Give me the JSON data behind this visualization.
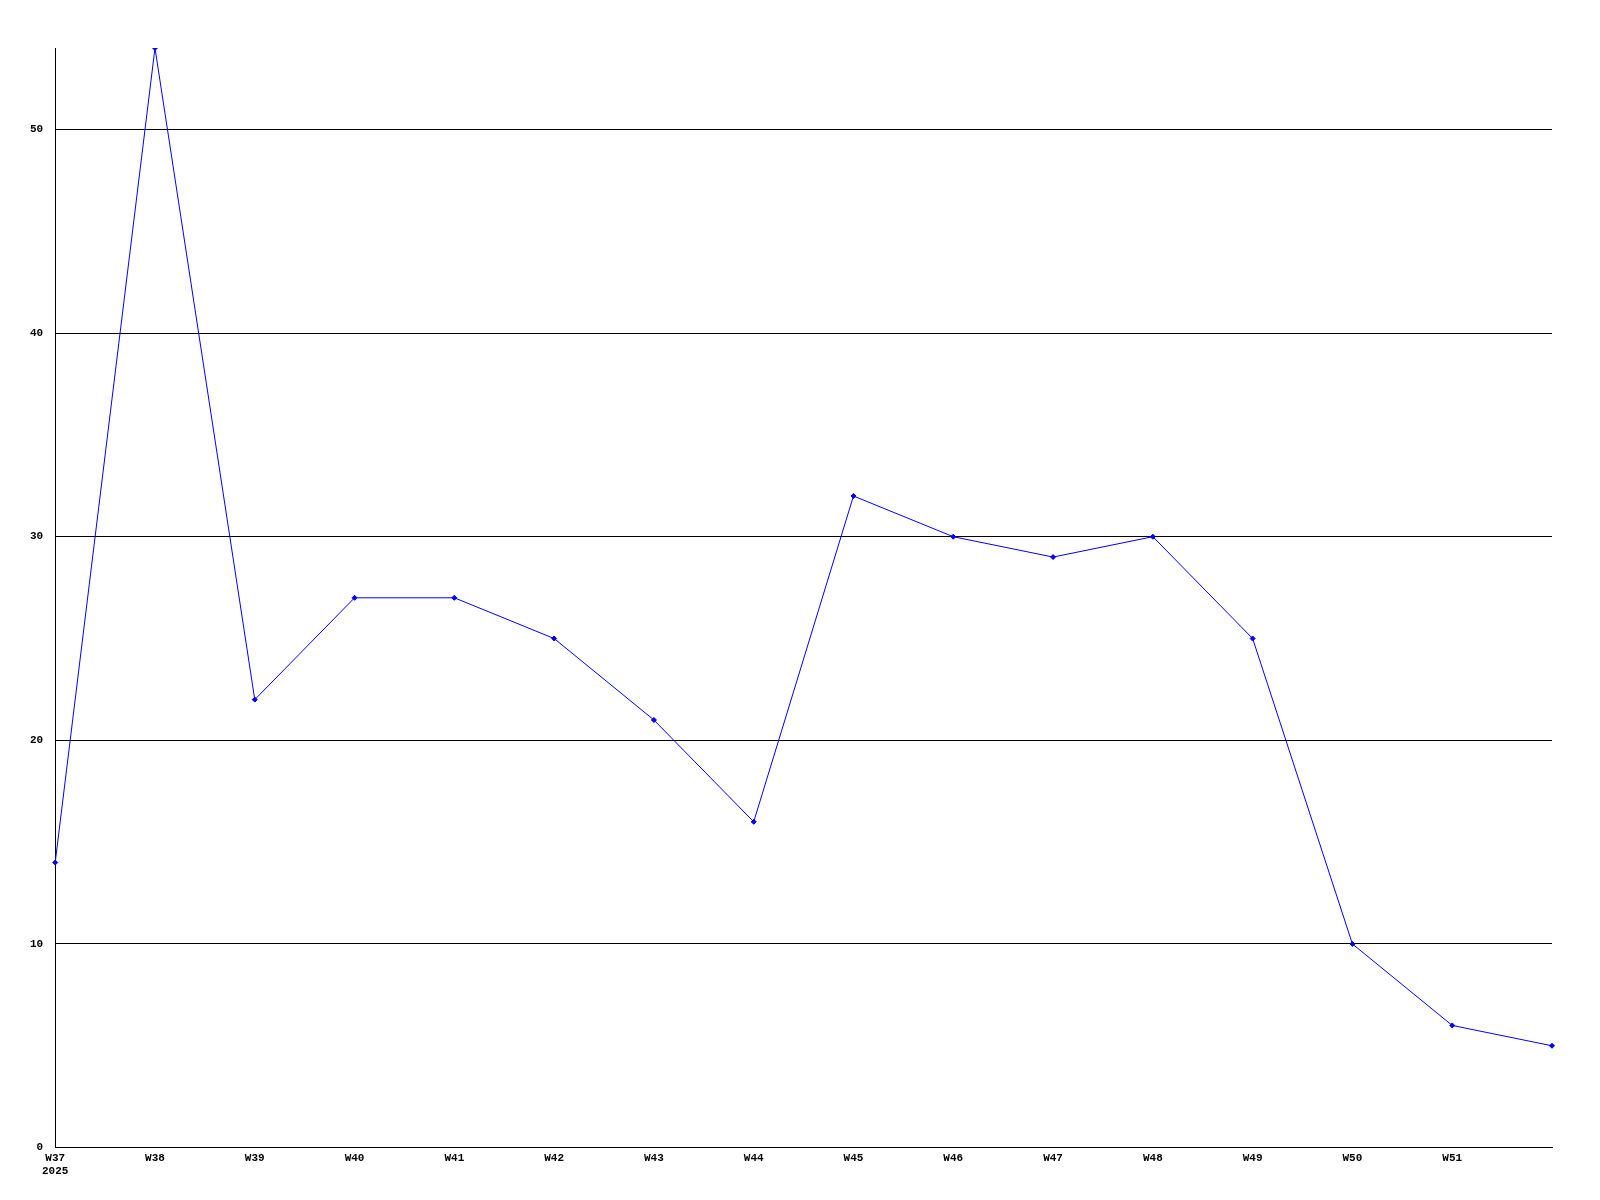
{
  "chart_data": {
    "type": "line",
    "categories": [
      "W37\n2025",
      "W38",
      "W39",
      "W40",
      "W41",
      "W42",
      "W43",
      "W44",
      "W45",
      "W46",
      "W47",
      "W48",
      "W49",
      "W50",
      "W51",
      null
    ],
    "series": [
      {
        "color": "#0000ff",
        "values": [
          14,
          54,
          22,
          27,
          27,
          25,
          21,
          16,
          32,
          30,
          29,
          30,
          25,
          10,
          6,
          5
        ]
      }
    ],
    "ylim": [
      0,
      54
    ],
    "yticks": [
      0,
      10,
      20,
      30,
      40,
      50
    ],
    "grid": "y",
    "legend": false,
    "marker": "diamond",
    "line_style": "solid"
  }
}
